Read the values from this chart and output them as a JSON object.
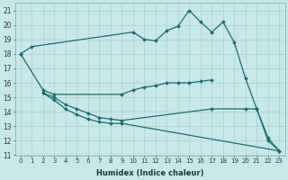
{
  "xlabel": "Humidex (Indice chaleur)",
  "bg_color": "#c8e8e8",
  "line_color": "#1a6e6a",
  "grid_color": "#b0d4d4",
  "xlim": [
    -0.5,
    23.5
  ],
  "ylim": [
    11,
    21.5
  ],
  "yticks": [
    11,
    12,
    13,
    14,
    15,
    16,
    17,
    18,
    19,
    20,
    21
  ],
  "xticks": [
    0,
    1,
    2,
    3,
    4,
    5,
    6,
    7,
    8,
    9,
    10,
    11,
    12,
    13,
    14,
    15,
    16,
    17,
    18,
    19,
    20,
    21,
    22,
    23
  ],
  "series": [
    {
      "x": [
        0,
        1,
        10,
        11,
        12,
        13,
        14,
        15,
        16,
        17,
        18,
        19,
        20,
        21,
        22,
        23
      ],
      "y": [
        18.0,
        18.5,
        19.5,
        19.0,
        18.9,
        19.6,
        19.9,
        21.0,
        20.2,
        19.5,
        20.2,
        18.8,
        16.3,
        14.2,
        12.2,
        11.3
      ]
    },
    {
      "x": [
        0,
        2,
        3,
        9,
        10,
        11,
        12,
        13,
        14,
        15,
        16,
        17
      ],
      "y": [
        18.0,
        15.5,
        15.2,
        15.2,
        15.5,
        15.7,
        15.8,
        16.0,
        16.0,
        16.0,
        16.1,
        16.2
      ]
    },
    {
      "x": [
        2,
        3,
        4,
        5,
        6,
        7,
        8,
        9,
        17,
        20,
        21,
        22,
        23
      ],
      "y": [
        15.3,
        15.0,
        14.5,
        14.2,
        13.9,
        13.6,
        13.5,
        13.4,
        14.2,
        14.2,
        14.2,
        12.0,
        11.3
      ]
    },
    {
      "x": [
        2,
        3,
        4,
        5,
        6,
        7,
        8,
        9,
        23
      ],
      "y": [
        15.3,
        14.8,
        14.2,
        13.8,
        13.5,
        13.3,
        13.2,
        13.2,
        11.3
      ]
    }
  ]
}
